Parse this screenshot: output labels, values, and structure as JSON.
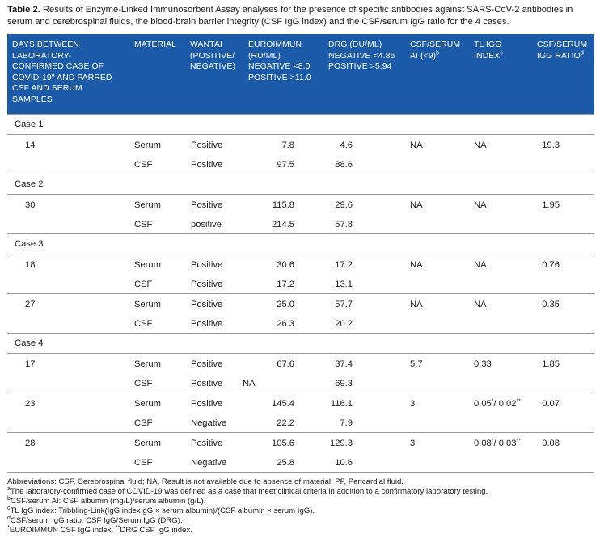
{
  "caption": {
    "label": "Table 2.",
    "text": "Results of Enzyme-Linked Immunosorbent Assay analyses for the presence of specific antibodies against SARS-CoV-2 antibodies in serum and cerebrospinal fluids, the blood-brain barrier integrity (CSF IgG index) and the CSF/serum IgG ratio for the 4 cases."
  },
  "headers": {
    "days": [
      "DAYS BETWEEN",
      "LABORATORY-",
      "CONFIRMED CASE OF",
      "COVID-19",
      "AND PARRED",
      "CSF AND SERUM",
      "SAMPLES"
    ],
    "days_sup": "a",
    "material": "MATERIAL",
    "wantai": [
      "WANTAI",
      "(POSITIVE/",
      "NEGATIVE)"
    ],
    "euroimmun": [
      "EUROIMMUN",
      "(RU/ML)",
      "NEGATIVE <8.0",
      "POSITIVE >11.0"
    ],
    "drg": [
      "DRG (DU/ML)",
      "NEGATIVE <4.86",
      "POSITIVE >5.94"
    ],
    "csf_ai": [
      "CSF/SERUM",
      "AI (<9)"
    ],
    "csf_ai_sup": "b",
    "tl": [
      "TL IGG",
      "INDEX"
    ],
    "tl_sup": "c",
    "ratio": [
      "CSF/SERUM",
      "IGG RATIO"
    ],
    "ratio_sup": "d"
  },
  "cases": [
    {
      "label": "Case 1",
      "groups": [
        {
          "days": "14",
          "ai": "NA",
          "tl": "NA",
          "tl_sup": "",
          "tl2": "",
          "tl2_sup": "",
          "ratio": "19.3",
          "serum": {
            "material": "Serum",
            "wantai": "Positive",
            "euro": "7.8",
            "drg": "4.6"
          },
          "csf": {
            "material": "CSF",
            "wantai": "Positive",
            "euro": "97.5",
            "drg": "88.6"
          }
        }
      ]
    },
    {
      "label": "Case 2",
      "groups": [
        {
          "days": "30",
          "ai": "NA",
          "tl": "NA",
          "tl_sup": "",
          "tl2": "",
          "tl2_sup": "",
          "ratio": "1.95",
          "serum": {
            "material": "Serum",
            "wantai": "Positive",
            "euro": "115.8",
            "drg": "29.6"
          },
          "csf": {
            "material": "CSF",
            "wantai": "positive",
            "euro": "214.5",
            "drg": "57.8"
          }
        }
      ]
    },
    {
      "label": "Case 3",
      "groups": [
        {
          "days": "18",
          "ai": "NA",
          "tl": "NA",
          "tl_sup": "",
          "tl2": "",
          "tl2_sup": "",
          "ratio": "0.76",
          "serum": {
            "material": "Serum",
            "wantai": "Positive",
            "euro": "30.6",
            "drg": "17.2"
          },
          "csf": {
            "material": "CSF",
            "wantai": "Positive",
            "euro": "17.2",
            "drg": "13.1"
          }
        },
        {
          "days": "27",
          "ai": "NA",
          "tl": "NA",
          "tl_sup": "",
          "tl2": "",
          "tl2_sup": "",
          "ratio": "0.35",
          "serum": {
            "material": "Serum",
            "wantai": "Positive",
            "euro": "25.0",
            "drg": "57.7"
          },
          "csf": {
            "material": "CSF",
            "wantai": "Positive",
            "euro": "26.3",
            "drg": "20.2"
          }
        }
      ]
    },
    {
      "label": "Case 4",
      "groups": [
        {
          "days": "17",
          "ai": "5.7",
          "tl": "0.33",
          "tl_sup": "",
          "tl2": "",
          "tl2_sup": "",
          "ratio": "1.85",
          "serum": {
            "material": "Serum",
            "wantai": "Positive",
            "euro": "67.6",
            "drg": "37.4"
          },
          "csf": {
            "material": "CSF",
            "wantai": "Positive",
            "euro": "NA",
            "drg": "69.3"
          }
        },
        {
          "days": "23",
          "ai": "3",
          "tl": "0.05",
          "tl_sup": "*",
          "tl2": "/ 0.02",
          "tl2_sup": "**",
          "ratio": "0.07",
          "serum": {
            "material": "Serum",
            "wantai": "Positive",
            "euro": "145.4",
            "drg": "116.1"
          },
          "csf": {
            "material": "CSF",
            "wantai": "Negative",
            "euro": "22.2",
            "drg": "7.9"
          }
        },
        {
          "days": "28",
          "ai": "3",
          "tl": "0.08",
          "tl_sup": "*",
          "tl2": "/ 0.03",
          "tl2_sup": "**",
          "ratio": "0.08",
          "serum": {
            "material": "Serum",
            "wantai": "Positive",
            "euro": "105.6",
            "drg": "129.3"
          },
          "csf": {
            "material": "CSF",
            "wantai": "Negative",
            "euro": "25.8",
            "drg": "10.6"
          }
        }
      ]
    }
  ],
  "footnotes": [
    {
      "sup": "",
      "text": "Abbreviations: CSF, Cerebrospinal fluid; NA, Result is not available due to absence of material; PF, Pericardial fluid."
    },
    {
      "sup": "a",
      "text": "The laboratory-confirmed case of COVID-19 was defined as a case that meet clinical criteria in addition to a confirmatory laboratory testing."
    },
    {
      "sup": "b",
      "text": "CSF/serum AI: CSF albumin (mg/L)/serum albumin (g/L)."
    },
    {
      "sup": "c",
      "text": "TL IgG index: Tribbling-Link(IgG index gG × serum albumin)/(CSF albumin × serum IgG)."
    },
    {
      "sup": "d",
      "text": "CSF/serum IgG ratio: CSF IgG/Serum IgG (DRG)."
    },
    {
      "sup": "*",
      "text": "EUROIMMUN CSF IgG index. ",
      "sup2": "**",
      "text2": "DRG CSF IgG index."
    }
  ]
}
